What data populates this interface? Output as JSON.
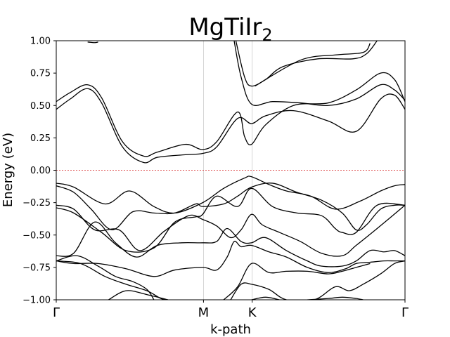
{
  "chart_data": {
    "type": "line",
    "title": "MgTiIr",
    "title_subscript": "2",
    "xlabel": "k-path",
    "ylabel": "Energy (eV)",
    "ylim": [
      -1.0,
      1.0
    ],
    "xlim": [
      0,
      1
    ],
    "yticks": [
      -1.0,
      -0.75,
      -0.5,
      -0.25,
      0.0,
      0.25,
      0.5,
      0.75,
      1.0
    ],
    "ytick_labels": [
      "−1.00",
      "−0.75",
      "−0.50",
      "−0.25",
      "0.00",
      "0.25",
      "0.50",
      "0.75",
      "1.00"
    ],
    "kpoints": [
      {
        "label": "Γ",
        "x": 0.0
      },
      {
        "label": "M",
        "x": 0.4222
      },
      {
        "label": "K",
        "x": 0.5618
      },
      {
        "label": "Γ",
        "x": 1.0
      }
    ],
    "fermi_level": 0.0,
    "fermi_color": "#d62728",
    "line_color": "#000000",
    "vline_color": "#cccccc",
    "grid": false,
    "series": [
      {
        "x": [
          0,
          0.04,
          0.09,
          0.13,
          0.19,
          0.25,
          0.29,
          0.37,
          0.42,
          0.46,
          0.52,
          0.56,
          0.6,
          0.68,
          0.78,
          0.86,
          0.93,
          0.97,
          1
        ],
        "y": [
          0.47,
          0.55,
          0.63,
          0.52,
          0.18,
          0.06,
          0.1,
          0.12,
          0.13,
          0.18,
          0.4,
          0.36,
          0.42,
          0.46,
          0.38,
          0.3,
          0.55,
          0.58,
          0.47
        ]
      },
      {
        "x": [
          0,
          0.04,
          0.09,
          0.13,
          0.19,
          0.25,
          0.29,
          0.37,
          0.42,
          0.46,
          0.52,
          0.54,
          0.56,
          0.6,
          0.68,
          0.78,
          0.86,
          0.93,
          0.97,
          1
        ],
        "y": [
          0.53,
          0.6,
          0.66,
          0.56,
          0.22,
          0.11,
          0.14,
          0.2,
          0.16,
          0.22,
          0.45,
          0.26,
          0.2,
          0.35,
          0.5,
          0.52,
          0.62,
          0.75,
          0.7,
          0.53
        ]
      },
      {
        "x": [
          0.51,
          0.53,
          0.56,
          0.62,
          0.7,
          0.78,
          0.86,
          0.93,
          0.97,
          1
        ],
        "y": [
          1.0,
          0.72,
          0.51,
          0.53,
          0.52,
          0.5,
          0.55,
          0.66,
          0.62,
          0.54
        ]
      },
      {
        "x": [
          0.515,
          0.54,
          0.56,
          0.6,
          0.65,
          0.75,
          0.85,
          0.89,
          0.92
        ],
        "y": [
          1.0,
          0.72,
          0.65,
          0.7,
          0.8,
          0.86,
          0.86,
          0.9,
          1.0
        ]
      },
      {
        "x": [
          0.57,
          0.7,
          0.8,
          0.88,
          0.9
        ],
        "y": [
          0.65,
          0.85,
          0.89,
          0.91,
          0.98
        ]
      },
      {
        "x": [
          0.09,
          0.11,
          0.12
        ],
        "y": [
          0.99,
          0.985,
          0.99
        ]
      },
      {
        "x": [
          0,
          0.05,
          0.14,
          0.21,
          0.28,
          0.34,
          0.42,
          0.48,
          0.54,
          0.56,
          0.61,
          0.66,
          0.73,
          0.8,
          0.87,
          0.93,
          0.97,
          1
        ],
        "y": [
          -0.1,
          -0.13,
          -0.26,
          -0.16,
          -0.28,
          -0.33,
          -0.25,
          -0.14,
          -0.06,
          -0.05,
          -0.11,
          -0.16,
          -0.2,
          -0.3,
          -0.24,
          -0.16,
          -0.12,
          -0.11
        ]
      },
      {
        "x": [
          0,
          0.05,
          0.1,
          0.16,
          0.22,
          0.28,
          0.34,
          0.4,
          0.42,
          0.48,
          0.52,
          0.56,
          0.62,
          0.69,
          0.76,
          0.82,
          0.86,
          0.89,
          0.93,
          0.97,
          1
        ],
        "y": [
          -0.12,
          -0.17,
          -0.3,
          -0.46,
          -0.32,
          -0.33,
          -0.33,
          -0.26,
          -0.28,
          -0.26,
          -0.2,
          -0.13,
          -0.1,
          -0.17,
          -0.23,
          -0.33,
          -0.46,
          -0.42,
          -0.3,
          -0.27,
          -0.27
        ]
      },
      {
        "x": [
          0,
          0.05,
          0.13,
          0.2,
          0.28,
          0.34,
          0.4,
          0.42,
          0.46,
          0.52,
          0.56,
          0.62,
          0.69,
          0.76,
          0.8,
          0.82,
          0.86,
          0.92,
          1
        ],
        "y": [
          -0.29,
          -0.33,
          -0.48,
          -0.62,
          -0.6,
          -0.4,
          -0.36,
          -0.34,
          -0.2,
          -0.28,
          -0.14,
          -0.28,
          -0.33,
          -0.35,
          -0.45,
          -0.48,
          -0.48,
          -0.27,
          -0.27
        ]
      },
      {
        "x": [
          0,
          0.05,
          0.11,
          0.18,
          0.24,
          0.31,
          0.38,
          0.42,
          0.46,
          0.5,
          0.53,
          0.56,
          0.59,
          0.64,
          0.7,
          0.76,
          0.82,
          0.86,
          0.92,
          1
        ],
        "y": [
          -0.27,
          -0.3,
          -0.46,
          -0.46,
          -0.62,
          -0.47,
          -0.35,
          -0.38,
          -0.43,
          -0.52,
          -0.46,
          -0.34,
          -0.42,
          -0.48,
          -0.55,
          -0.64,
          -0.66,
          -0.58,
          -0.45,
          -0.27
        ]
      },
      {
        "x": [
          0,
          0.05,
          0.11,
          0.17,
          0.23,
          0.29,
          0.36,
          0.42,
          0.46,
          0.49,
          0.53,
          0.56,
          0.6,
          0.66,
          0.72,
          0.76,
          0.82,
          0.86,
          0.9,
          0.94,
          0.97,
          1
        ],
        "y": [
          -0.66,
          -0.64,
          -0.4,
          -0.56,
          -0.67,
          -0.58,
          -0.56,
          -0.56,
          -0.55,
          -0.45,
          -0.55,
          -0.56,
          -0.52,
          -0.62,
          -0.7,
          -0.74,
          -0.74,
          -0.7,
          -0.62,
          -0.63,
          -0.62,
          -0.66
        ]
      },
      {
        "x": [
          0,
          0.05,
          0.12,
          0.2,
          0.28,
          0.34,
          0.42,
          0.46,
          0.49,
          0.51,
          0.53,
          0.56,
          0.61,
          0.66,
          0.72,
          0.78,
          0.83,
          0.86,
          0.9,
          0.94,
          0.97,
          1
        ],
        "y": [
          -0.7,
          -0.72,
          -0.72,
          -0.76,
          -0.82,
          -0.77,
          -0.75,
          -0.77,
          -0.67,
          -0.55,
          -0.59,
          -0.58,
          -0.63,
          -0.67,
          -0.75,
          -0.79,
          -0.76,
          -0.72,
          -0.71,
          -0.7,
          -0.7,
          -0.7
        ]
      },
      {
        "x": [
          0,
          0.07,
          0.14,
          0.2,
          0.26,
          0.3,
          0.32
        ],
        "y": [
          -0.7,
          -0.72,
          -0.82,
          -0.88,
          -0.93,
          -0.99,
          -1.0
        ]
      },
      {
        "x": [
          0,
          0.06,
          0.12,
          0.17,
          0.22,
          0.26,
          0.28
        ],
        "y": [
          -0.7,
          -0.66,
          -0.74,
          -0.82,
          -0.86,
          -0.92,
          -1.0
        ]
      },
      {
        "x": [
          0.48,
          0.52,
          0.56,
          0.61,
          0.66,
          0.72,
          0.78,
          0.82,
          0.86,
          0.9
        ],
        "y": [
          -1.0,
          -0.9,
          -0.72,
          -0.79,
          -0.78,
          -0.78,
          -0.8,
          -0.78,
          -0.75,
          -0.72
        ]
      },
      {
        "x": [
          0.5,
          0.53,
          0.56,
          0.61,
          0.66,
          0.74,
          0.8,
          0.84,
          0.88,
          0.93,
          0.97,
          1
        ],
        "y": [
          -1.0,
          -0.88,
          -0.88,
          -0.92,
          -1.0,
          -1.0,
          -0.9,
          -0.93,
          -0.88,
          -0.8,
          -0.72,
          -0.7
        ]
      },
      {
        "x": [
          0.15,
          0.2,
          0.26,
          0.32
        ],
        "y": [
          -1.0,
          -0.93,
          -0.96,
          -1.0
        ]
      },
      {
        "x": [
          0.72,
          0.78,
          0.82,
          0.86,
          0.88
        ],
        "y": [
          -1.0,
          -0.99,
          -0.98,
          -0.99,
          -1.0
        ]
      },
      {
        "x": [
          0.56,
          0.6,
          0.64
        ],
        "y": [
          -1.0,
          -0.98,
          -1.0
        ]
      }
    ]
  }
}
